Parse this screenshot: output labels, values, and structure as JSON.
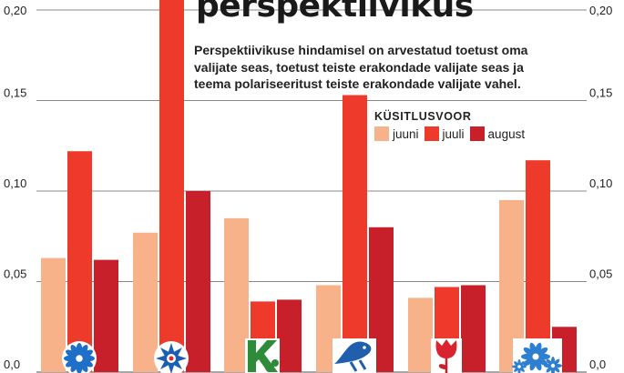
{
  "chart_data": {
    "type": "bar",
    "title": "perspektiivikus",
    "subtitle": "Perspektiivikuse hindamisel on arvestatud toetust oma valijate seas, toetust teiste erakondade valijate seas ja teema polariseeritust teiste erakondade valijate vahel.",
    "categories": [
      "",
      "",
      "",
      "",
      "",
      ""
    ],
    "category_icons": [
      "cornflower-icon",
      "star-icon",
      "k-logo-icon",
      "bird-logo-icon",
      "rose-icon",
      "flower-icon"
    ],
    "legend_title": "KÜSITLUSVOOR",
    "legend_position": "top-right",
    "series": [
      {
        "name": "juuni",
        "color": "#f7b28a",
        "values": [
          0.063,
          0.077,
          0.085,
          0.048,
          0.041,
          0.095
        ]
      },
      {
        "name": "juuli",
        "color": "#ee3a2b",
        "values": [
          0.122,
          0.215,
          0.039,
          0.153,
          0.047,
          0.117
        ]
      },
      {
        "name": "august",
        "color": "#c8202b",
        "values": [
          0.062,
          0.1,
          0.04,
          0.08,
          0.048,
          0.025
        ]
      }
    ],
    "y_ticks": [
      "0,20",
      "0,15",
      "0,10",
      "0,05",
      "0,0"
    ],
    "y_tick_values": [
      0.2,
      0.15,
      0.1,
      0.05,
      0.0
    ],
    "ylim": [
      0,
      0.2
    ],
    "grid": true,
    "colors": {
      "grid": "#8a8a8a",
      "text": "#222222"
    }
  }
}
